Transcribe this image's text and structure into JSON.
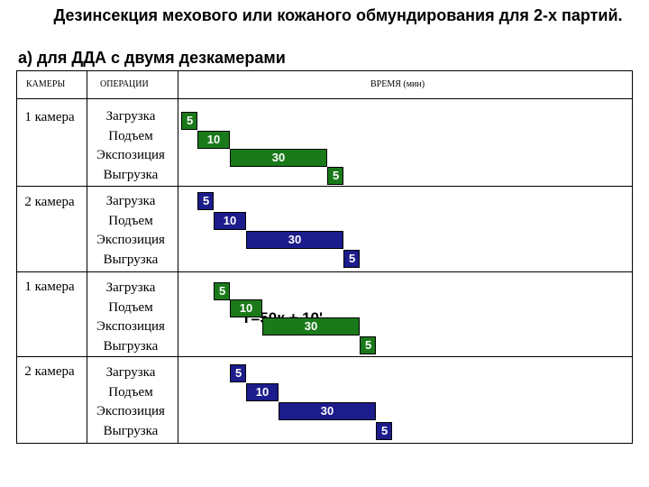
{
  "title": "Дезинсекция мехового или кожаного обмундирования для 2-х партий.",
  "subtitle": "а) для ДДА с двумя дезкамерами",
  "table": {
    "headers": {
      "cameras": "КАМЕРЫ",
      "operations": "ОПЕРАЦИИ",
      "time": "ВРЕМЯ (мин)"
    },
    "operations": [
      "Загрузка",
      "Подъем",
      "Экспозиция",
      "Выгрузка"
    ],
    "groups": [
      {
        "camera": "1 камера",
        "color": "#1a7a1a",
        "durations": [
          "5",
          "10",
          "30",
          "5"
        ]
      },
      {
        "camera": "2 камера",
        "color": "#1c1c8c",
        "durations": [
          "5",
          "10",
          "30",
          "5"
        ]
      },
      {
        "camera": "1 камера",
        "color": "#1a7a1a",
        "durations": [
          "5",
          "10",
          "30",
          "5"
        ]
      },
      {
        "camera": "2 камера",
        "color": "#1c1c8c",
        "durations": [
          "5",
          "10",
          "30",
          "5"
        ]
      }
    ],
    "formula": "T=50к + 10'"
  },
  "colors": {
    "green": "#1a7a1a",
    "blue": "#1c1c8c"
  }
}
